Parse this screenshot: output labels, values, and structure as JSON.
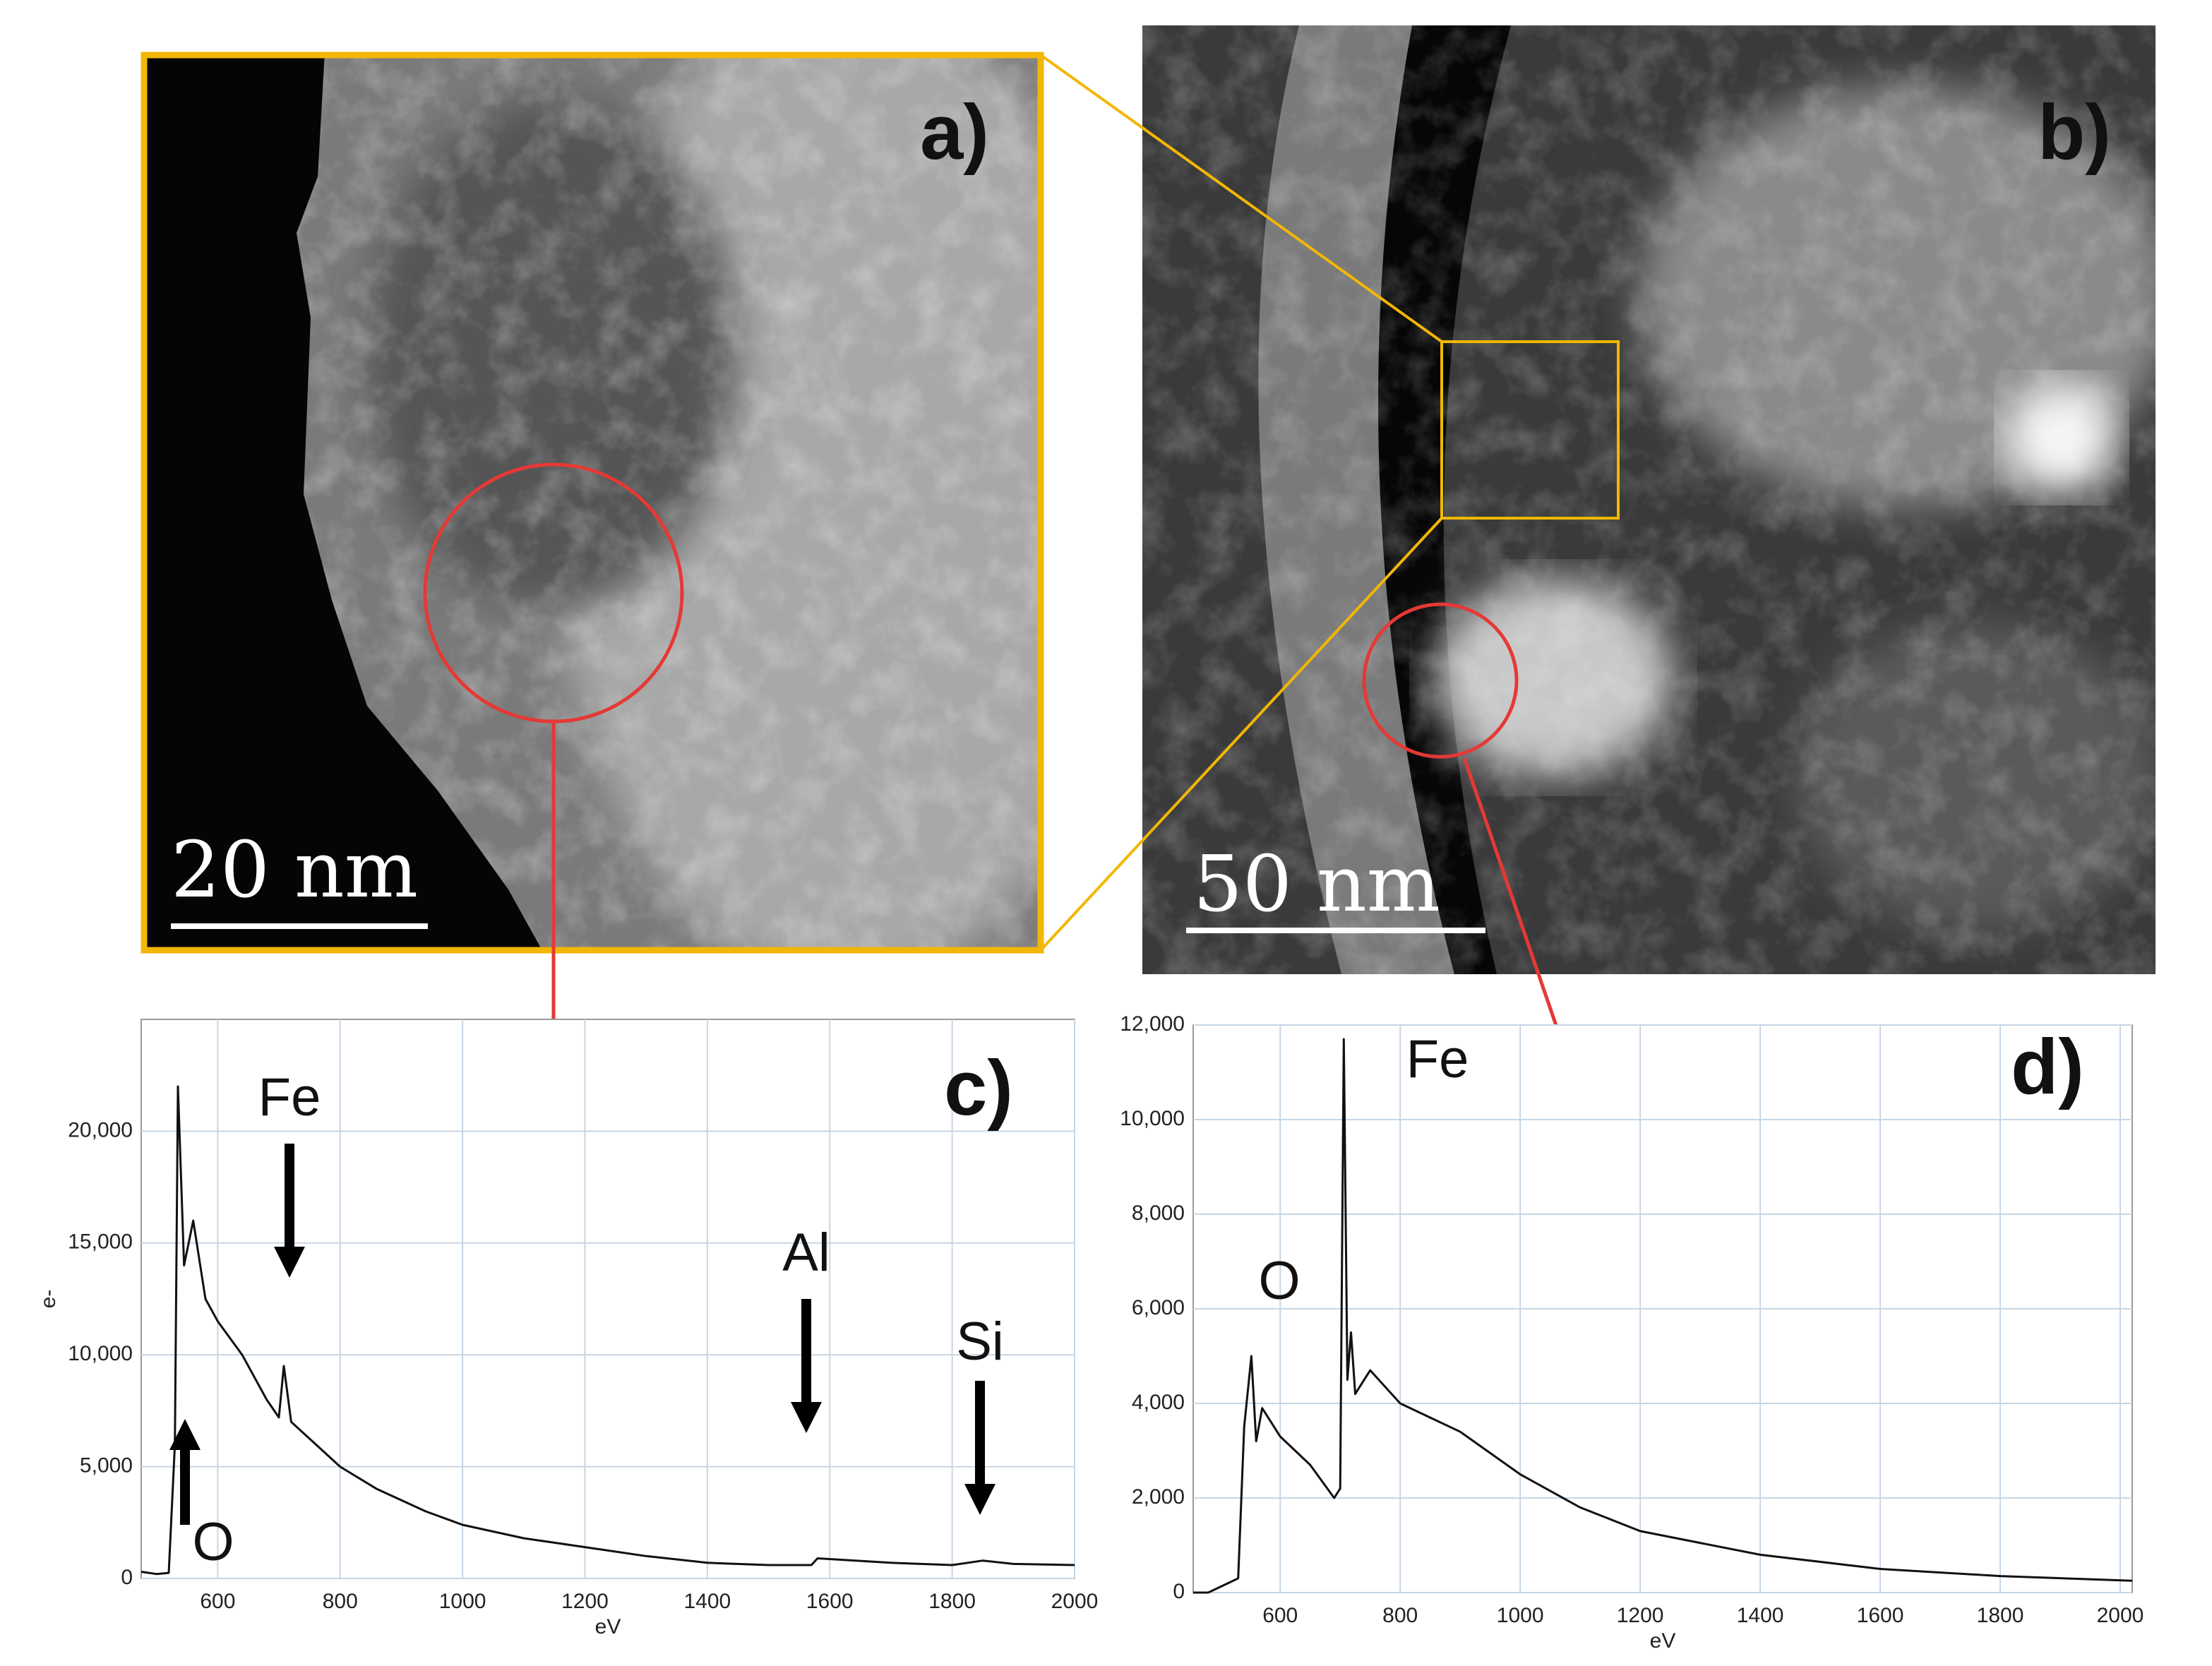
{
  "images": [
    {
      "label": "a)",
      "scale_bar": "20 nm"
    },
    {
      "label": "b)",
      "scale_bar": "50 nm"
    }
  ],
  "chart_data": [
    {
      "type": "line",
      "panel": "c)",
      "xlabel": "eV",
      "ylabel": "e-",
      "x": [
        475,
        500,
        520,
        530,
        535,
        545,
        560,
        580,
        600,
        640,
        680,
        700,
        708,
        720,
        760,
        800,
        860,
        940,
        1000,
        1100,
        1200,
        1300,
        1400,
        1500,
        1570,
        1580,
        1700,
        1800,
        1850,
        1900,
        2000
      ],
      "series": [
        {
          "color": "#111111",
          "values": [
            300,
            200,
            250,
            6000,
            22000,
            14000,
            16000,
            12500,
            11500,
            10000,
            8000,
            7200,
            9500,
            7000,
            6000,
            5000,
            4000,
            3000,
            2400,
            1800,
            1400,
            1000,
            700,
            600,
            600,
            900,
            700,
            600,
            800,
            650,
            600
          ]
        }
      ],
      "xlim": [
        475,
        2000
      ],
      "ylim": [
        0,
        25000
      ],
      "xticks": [
        600,
        800,
        1000,
        1200,
        1400,
        1600,
        1800,
        2000
      ],
      "yticks": [
        0,
        {
          "value": 5000,
          "label": "5,000"
        },
        {
          "value": 10000,
          "label": "10,000"
        },
        {
          "value": 15000,
          "label": "15,000"
        },
        {
          "value": 20000,
          "label": "20,000"
        }
      ],
      "grid": true,
      "annotations": [
        "Fe",
        "Al",
        "Si",
        "O"
      ]
    },
    {
      "type": "line",
      "panel": "d)",
      "xlabel": "eV",
      "x": [
        455,
        480,
        530,
        540,
        552,
        560,
        570,
        600,
        650,
        690,
        700,
        706,
        712,
        718,
        725,
        750,
        800,
        900,
        1000,
        1100,
        1200,
        1400,
        1600,
        1800,
        2020
      ],
      "series": [
        {
          "color": "#111111",
          "values": [
            0,
            0,
            300,
            3500,
            5000,
            3200,
            3900,
            3300,
            2700,
            2000,
            2200,
            11700,
            4500,
            5500,
            4200,
            4700,
            4000,
            3400,
            2500,
            1800,
            1300,
            800,
            500,
            350,
            250
          ]
        }
      ],
      "xlim": [
        455,
        2020
      ],
      "ylim": [
        0,
        12000
      ],
      "xticks": [
        600,
        800,
        1000,
        1200,
        1400,
        1600,
        1800,
        2000
      ],
      "yticks": [
        0,
        {
          "value": 2000,
          "label": "2,000"
        },
        {
          "value": 4000,
          "label": "4,000"
        },
        {
          "value": 6000,
          "label": "6,000"
        },
        {
          "value": 8000,
          "label": "8,000"
        },
        {
          "value": 10000,
          "label": "10,000"
        },
        {
          "value": 12000,
          "label": "12,000"
        }
      ],
      "grid": true,
      "annotations": [
        "Fe",
        "O"
      ]
    }
  ]
}
